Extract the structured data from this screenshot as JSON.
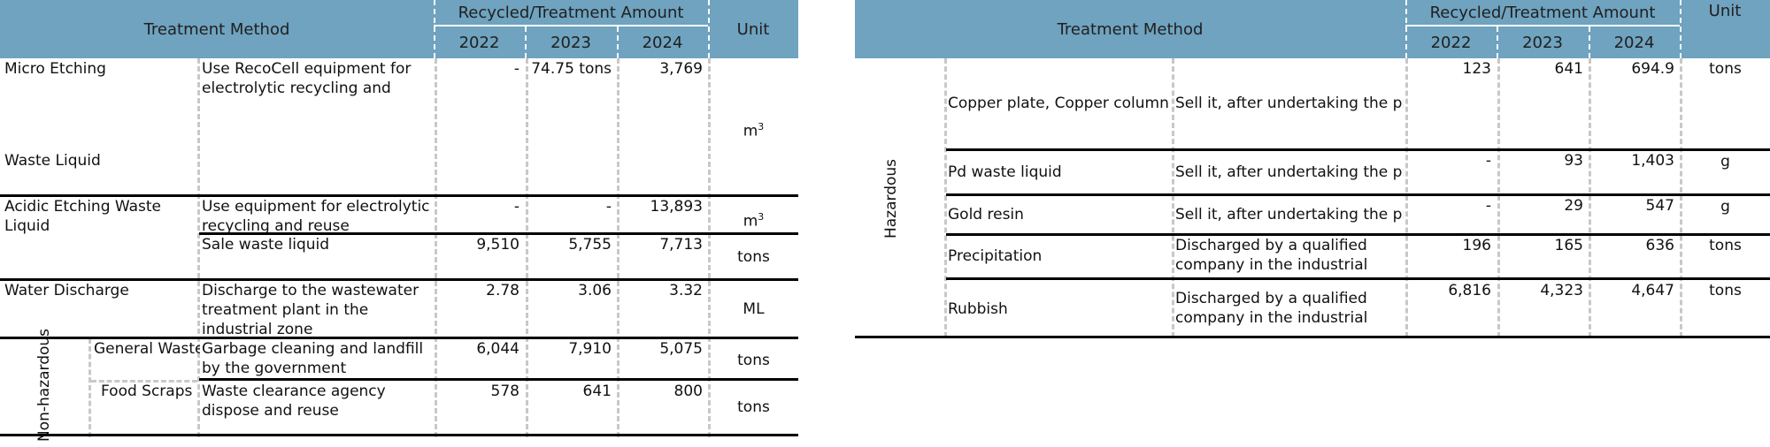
{
  "left_table": {
    "header": {
      "treatment_method": "Treatment Method",
      "amount": "Recycled/Treatment Amount",
      "years": [
        "2022",
        "2023",
        "2024"
      ],
      "unit": "Unit"
    },
    "rows": {
      "micro_etching": {
        "name_top": "Micro Etching",
        "name_bottom": "Waste Liquid",
        "method": "Use RecoCell equipment for electrolytic recycling and reuse",
        "v2022": "-",
        "v2023": "74.75 tons",
        "v2024": "3,769",
        "unit": "m",
        "unit_sup": "3"
      },
      "acidic_1": {
        "name": "Acidic Etching Waste Liquid",
        "method": "Use equipment for electrolytic recycling and reuse",
        "v2022": "-",
        "v2023": "-",
        "v2024": "13,893",
        "unit": "m",
        "unit_sup": "3"
      },
      "acidic_2": {
        "method": "Sale waste liquid",
        "v2022": "9,510",
        "v2023": "5,755",
        "v2024": "7,713",
        "unit": "tons"
      },
      "water": {
        "name": "Water Discharge",
        "method": "Discharge to the wastewater treatment plant in the industrial zone",
        "v2022": "2.78",
        "v2023": "3.06",
        "v2024": "3.32",
        "unit": "ML"
      },
      "group_label": "Non-hazardous",
      "general": {
        "name": "General Waste",
        "method": "Garbage cleaning and landfill by the government",
        "v2022": "6,044",
        "v2023": "7,910",
        "v2024": "5,075",
        "unit": "tons"
      },
      "food": {
        "name": "Food Scraps",
        "method": "Waste clearance agency dispose and reuse",
        "v2022": "578",
        "v2023": "641",
        "v2024": "800",
        "unit": "tons"
      }
    }
  },
  "right_table": {
    "header": {
      "treatment_method": "Treatment Method",
      "amount": "Recycled/Treatment Amount",
      "years": [
        "2022",
        "2023",
        "2024"
      ],
      "unit": "Unit"
    },
    "group_label": "Hazardous",
    "rows": [
      {
        "name": "Copper plate, Copper column",
        "method": "Sell it, after undertaking the pro",
        "v2022": "123",
        "v2023": "641",
        "v2024": "694.9",
        "unit": "tons"
      },
      {
        "name": "Pd waste liquid",
        "method": "Sell it, after undertaking the pro",
        "v2022": "-",
        "v2023": "93",
        "v2024": "1,403",
        "unit": "g"
      },
      {
        "name": "Gold resin",
        "method": "Sell it, after undertaking the pro",
        "v2022": "-",
        "v2023": "29",
        "v2024": "547",
        "unit": "g"
      },
      {
        "name": "Precipitation",
        "method": "Discharged by a qualified company in the industrial zone",
        "v2022": "196",
        "v2023": "165",
        "v2024": "636",
        "unit": "tons"
      },
      {
        "name": "Rubbish",
        "method": "Discharged by a qualified company in the industrial zone",
        "v2022": "6,816",
        "v2023": "4,323",
        "v2024": "4,647",
        "unit": "tons"
      }
    ]
  }
}
